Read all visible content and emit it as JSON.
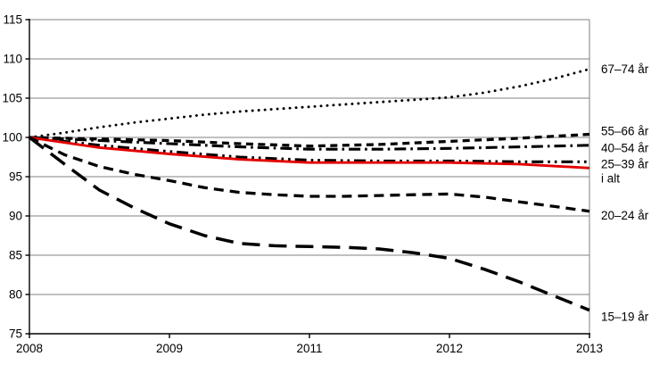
{
  "chart_data": {
    "type": "line",
    "title": "",
    "xlabel": "",
    "ylabel": "",
    "x_tick_labels": [
      "2008",
      "2009",
      "2011",
      "2012",
      "2013"
    ],
    "x_unit": "tick-index (0 = first tick '2008', ticks evenly spaced as labeled)",
    "y_ticks": [
      75,
      80,
      85,
      90,
      95,
      100,
      105,
      110,
      115
    ],
    "ylim": [
      75,
      115
    ],
    "index_base": 100,
    "grid": "horizontal-only",
    "legend_position": "right-edge-direct-labels",
    "colors": {
      "series_black": "#000000",
      "total_red": "#e30000",
      "gridline": "#808080",
      "axis": "#000000",
      "background": "#ffffff"
    },
    "series": [
      {
        "id": "67-74-ar",
        "name": "67–74 år",
        "style": "dotted",
        "color": "#000000",
        "label_dy": 0,
        "points": [
          [
            0,
            100
          ],
          [
            0.25,
            100.6
          ],
          [
            0.5,
            101.3
          ],
          [
            0.75,
            101.9
          ],
          [
            1,
            102.4
          ],
          [
            1.25,
            102.9
          ],
          [
            1.5,
            103.3
          ],
          [
            1.75,
            103.6
          ],
          [
            2,
            103.9
          ],
          [
            2.25,
            104.2
          ],
          [
            2.5,
            104.5
          ],
          [
            2.75,
            104.8
          ],
          [
            3,
            105.1
          ],
          [
            3.25,
            105.7
          ],
          [
            3.5,
            106.5
          ],
          [
            3.75,
            107.5
          ],
          [
            4,
            108.7
          ]
        ]
      },
      {
        "id": "55-66-ar",
        "name": "55–66 år",
        "style": "short-dash",
        "color": "#000000",
        "label_dy": -3.5,
        "points": [
          [
            0,
            100
          ],
          [
            0.5,
            99.8
          ],
          [
            1,
            99.6
          ],
          [
            1.5,
            99.2
          ],
          [
            2,
            98.9
          ],
          [
            2.5,
            99.1
          ],
          [
            3,
            99.5
          ],
          [
            3.5,
            99.9
          ],
          [
            4,
            100.4
          ]
        ]
      },
      {
        "id": "40-54-ar",
        "name": "40–54 år",
        "style": "dash-dot",
        "color": "#000000",
        "label_dy": 3,
        "points": [
          [
            0,
            100
          ],
          [
            0.5,
            99.6
          ],
          [
            1,
            99.2
          ],
          [
            1.5,
            98.8
          ],
          [
            2,
            98.5
          ],
          [
            2.5,
            98.5
          ],
          [
            3,
            98.6
          ],
          [
            3.5,
            98.8
          ],
          [
            4,
            99.0
          ]
        ]
      },
      {
        "id": "25-39-ar",
        "name": "25–39 år",
        "style": "dash-dot-dot",
        "color": "#000000",
        "label_dy": 2.7,
        "points": [
          [
            0,
            100
          ],
          [
            0.5,
            99.0
          ],
          [
            1,
            98.2
          ],
          [
            1.5,
            97.5
          ],
          [
            2,
            97.1
          ],
          [
            2.5,
            97.0
          ],
          [
            3,
            97.0
          ],
          [
            3.5,
            96.9
          ],
          [
            4,
            96.9
          ]
        ]
      },
      {
        "id": "i-alt",
        "name": "i alt",
        "style": "solid",
        "color": "#e30000",
        "label_dy": 11.7,
        "points": [
          [
            0,
            100
          ],
          [
            0.5,
            98.7
          ],
          [
            1,
            97.9
          ],
          [
            1.5,
            97.2
          ],
          [
            2,
            96.8
          ],
          [
            2.5,
            96.8
          ],
          [
            3,
            96.8
          ],
          [
            3.5,
            96.6
          ],
          [
            4,
            96.1
          ]
        ]
      },
      {
        "id": "20-24-ar",
        "name": "20–24 år",
        "style": "medium-dash",
        "color": "#000000",
        "label_dy": 5,
        "points": [
          [
            0,
            100
          ],
          [
            0.25,
            97.8
          ],
          [
            0.5,
            96.3
          ],
          [
            0.75,
            95.3
          ],
          [
            1,
            94.5
          ],
          [
            1.25,
            93.6
          ],
          [
            1.5,
            93.0
          ],
          [
            1.75,
            92.7
          ],
          [
            2,
            92.5
          ],
          [
            2.25,
            92.5
          ],
          [
            2.5,
            92.6
          ],
          [
            2.75,
            92.7
          ],
          [
            3,
            92.8
          ],
          [
            3.25,
            92.4
          ],
          [
            3.5,
            91.8
          ],
          [
            3.75,
            91.2
          ],
          [
            4,
            90.6
          ]
        ]
      },
      {
        "id": "15-19-ar",
        "name": "15–19 år",
        "style": "long-dash",
        "color": "#000000",
        "label_dy": 7.4,
        "points": [
          [
            0,
            100
          ],
          [
            0.25,
            96.6
          ],
          [
            0.5,
            93.3
          ],
          [
            0.75,
            91.0
          ],
          [
            1,
            89.0
          ],
          [
            1.25,
            87.5
          ],
          [
            1.5,
            86.5
          ],
          [
            1.75,
            86.2
          ],
          [
            2,
            86.1
          ],
          [
            2.25,
            86.0
          ],
          [
            2.5,
            85.8
          ],
          [
            2.75,
            85.3
          ],
          [
            3,
            84.6
          ],
          [
            3.25,
            83.2
          ],
          [
            3.5,
            81.6
          ],
          [
            3.75,
            79.8
          ],
          [
            4,
            78.0
          ]
        ]
      }
    ]
  }
}
